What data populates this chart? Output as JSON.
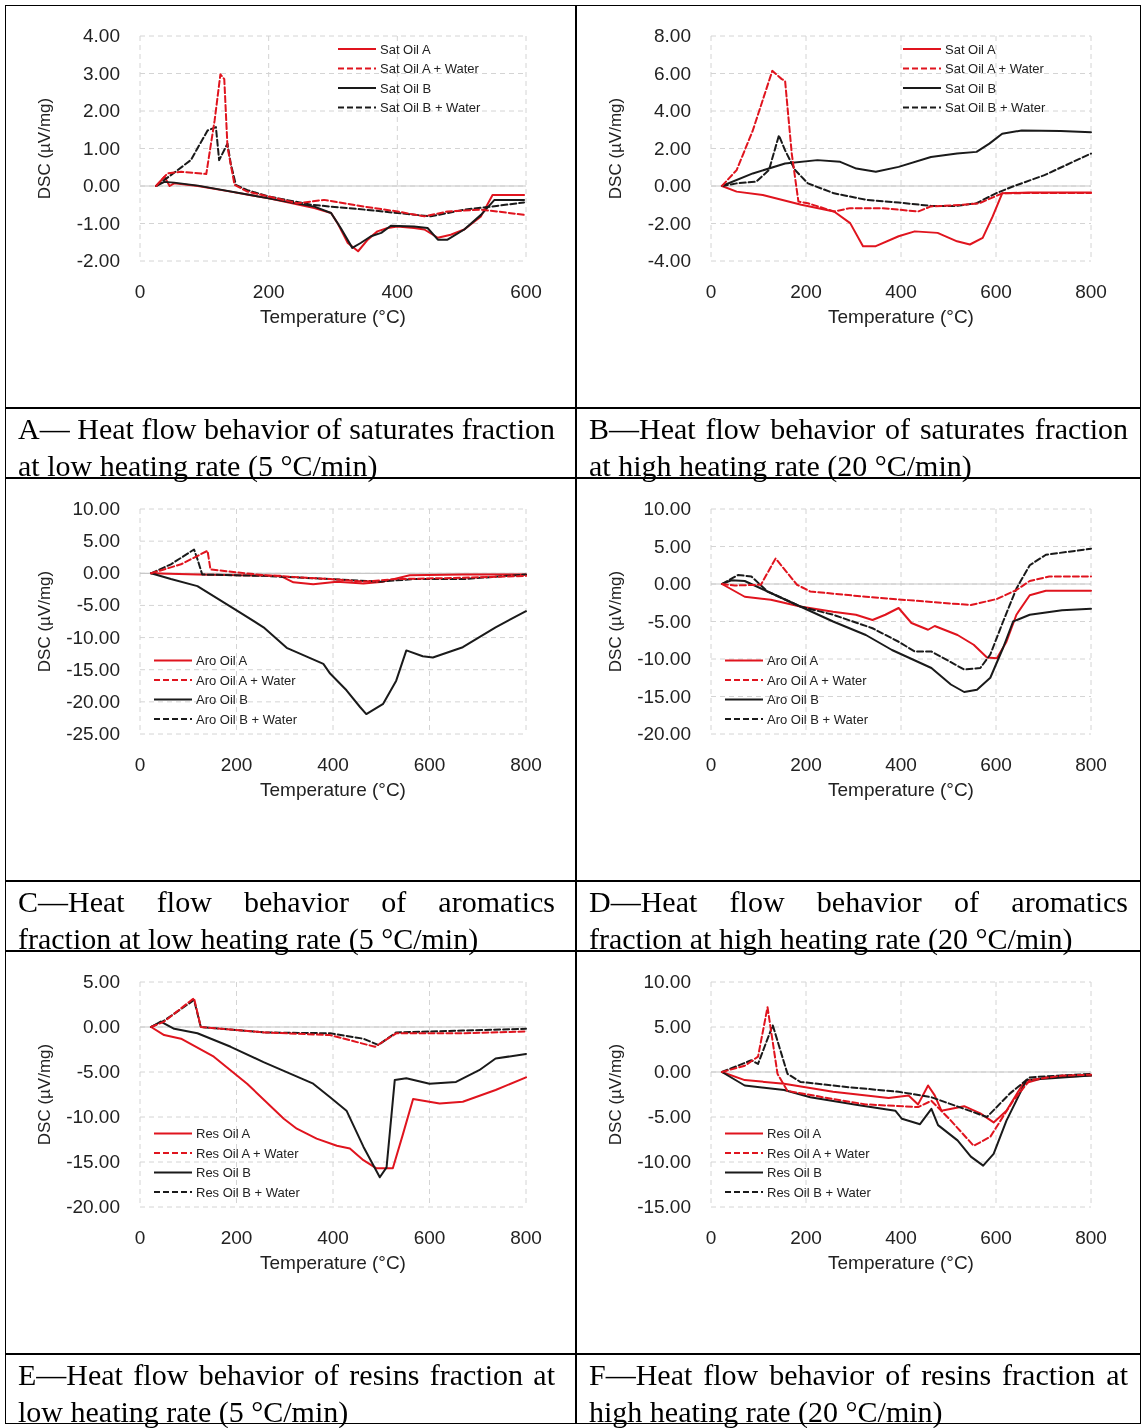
{
  "chart_data": [
    {
      "type": "line",
      "title": "A— Heat flow behavior of saturates fraction at low heating rate (5 °C/min)",
      "xlabel": "Temperature (°C)",
      "ylabel": "DSC (µV/mg)",
      "xlim": [
        0,
        600
      ],
      "xticks": [
        0,
        200,
        400,
        600
      ],
      "ylim": [
        -2,
        4
      ],
      "yticks": [
        {
          "value": -2,
          "label": "-2.00"
        },
        {
          "value": -1,
          "label": "-1.00"
        },
        {
          "value": 0,
          "label": "0.00"
        },
        {
          "value": 1,
          "label": "1.00"
        },
        {
          "value": 2,
          "label": "2.00"
        },
        {
          "value": 3,
          "label": "3.00"
        },
        {
          "value": 4,
          "label": "4.00"
        }
      ],
      "grid": true,
      "legend": "top right",
      "series": [
        {
          "name": "Sat Oil A",
          "color": "#e0141e",
          "line_style": "solid",
          "x": [
            25,
            38,
            46,
            53,
            90,
            141,
            200,
            271,
            297,
            307,
            323,
            339,
            354,
            369,
            385,
            400,
            426,
            442,
            463,
            483,
            504,
            530,
            548,
            597
          ],
          "values": [
            0,
            0.25,
            0,
            0.07,
            0,
            -0.15,
            -0.33,
            -0.59,
            -0.72,
            -0.99,
            -1.52,
            -1.74,
            -1.43,
            -1.21,
            -1.12,
            -1.08,
            -1.12,
            -1.16,
            -1.38,
            -1.3,
            -1.16,
            -0.81,
            -0.24,
            -0.24
          ]
        },
        {
          "name": "Sat Oil A + Water",
          "color": "#e0141e",
          "line_style": "dashed",
          "x": [
            25,
            43,
            64,
            103,
            116,
            125,
            131,
            136,
            147,
            167,
            200,
            245,
            286,
            349,
            400,
            442,
            478,
            530,
            556,
            597
          ],
          "values": [
            0,
            0.34,
            0.38,
            0.32,
            1.75,
            2.98,
            2.85,
            1.04,
            0.03,
            -0.15,
            -0.28,
            -0.46,
            -0.37,
            -0.55,
            -0.68,
            -0.81,
            -0.68,
            -0.63,
            -0.68,
            -0.77
          ]
        },
        {
          "name": "Sat Oil B",
          "color": "#1a1a1a",
          "line_style": "solid",
          "x": [
            25,
            38,
            53,
            90,
            200,
            271,
            297,
            312,
            330,
            343,
            359,
            375,
            390,
            426,
            447,
            463,
            478,
            504,
            530,
            551,
            597
          ],
          "values": [
            0,
            0.11,
            0.09,
            0.01,
            -0.33,
            -0.55,
            -0.72,
            -1.12,
            -1.65,
            -1.52,
            -1.34,
            -1.25,
            -1.06,
            -1.08,
            -1.12,
            -1.43,
            -1.43,
            -1.16,
            -0.77,
            -0.37,
            -0.37
          ]
        },
        {
          "name": "Sat Oil B + Water",
          "color": "#1a1a1a",
          "line_style": "dashed",
          "x": [
            25,
            48,
            79,
            105,
            118,
            123,
            136,
            141,
            149,
            167,
            200,
            266,
            297,
            349,
            400,
            452,
            504,
            546,
            597
          ],
          "values": [
            0,
            0.29,
            0.69,
            1.48,
            1.57,
            0.69,
            1.13,
            0.6,
            0.03,
            -0.11,
            -0.28,
            -0.5,
            -0.55,
            -0.63,
            -0.72,
            -0.81,
            -0.63,
            -0.55,
            -0.44
          ]
        }
      ]
    },
    {
      "type": "line",
      "title": "B—Heat flow behavior of saturates fraction at high heating rate (20 °C/min)",
      "xlabel": "Temperature (°C)",
      "ylabel": "DSC (µV/mg)",
      "xlim": [
        0,
        800
      ],
      "xticks": [
        0,
        200,
        400,
        600,
        800
      ],
      "ylim": [
        -4,
        8
      ],
      "yticks": [
        {
          "value": -4,
          "label": "-4.00"
        },
        {
          "value": -2,
          "label": "-2.00"
        },
        {
          "value": 0,
          "label": "0.00"
        },
        {
          "value": 2,
          "label": "2.00"
        },
        {
          "value": 4,
          "label": "4.00"
        },
        {
          "value": 6,
          "label": "6.00"
        },
        {
          "value": 8,
          "label": "8.00"
        }
      ],
      "grid": true,
      "legend": "top right",
      "series": [
        {
          "name": "Sat Oil A",
          "color": "#e0141e",
          "line_style": "solid",
          "x": [
            23,
            54,
            109,
            190,
            259,
            293,
            320,
            347,
            395,
            429,
            477,
            518,
            545,
            572,
            593,
            613,
            668,
            800
          ],
          "values": [
            0,
            -0.3,
            -0.48,
            -1.0,
            -1.36,
            -1.98,
            -3.21,
            -3.21,
            -2.68,
            -2.42,
            -2.5,
            -2.95,
            -3.12,
            -2.77,
            -1.62,
            -0.39,
            -0.35,
            -0.35
          ]
        },
        {
          "name": "Sat Oil A + Water",
          "color": "#e0141e",
          "line_style": "dashed",
          "x": [
            23,
            54,
            88,
            129,
            149,
            156,
            170,
            184,
            204,
            259,
            293,
            361,
            436,
            463,
            531,
            565,
            613,
            700,
            800
          ],
          "values": [
            0,
            0.85,
            2.96,
            6.14,
            5.7,
            5.6,
            1.73,
            -0.83,
            -0.92,
            -1.36,
            -1.18,
            -1.18,
            -1.36,
            -1.09,
            -1.0,
            -0.92,
            -0.39,
            -0.37,
            -0.37
          ]
        },
        {
          "name": "Sat Oil B",
          "color": "#1a1a1a",
          "line_style": "solid",
          "x": [
            23,
            88,
            156,
            224,
            272,
            306,
            347,
            395,
            463,
            518,
            559,
            586,
            613,
            654,
            736,
            800
          ],
          "values": [
            0,
            0.67,
            1.2,
            1.38,
            1.29,
            0.93,
            0.76,
            1.02,
            1.55,
            1.73,
            1.82,
            2.26,
            2.79,
            2.96,
            2.93,
            2.87
          ]
        },
        {
          "name": "Sat Oil B + Water",
          "color": "#1a1a1a",
          "line_style": "dashed",
          "x": [
            23,
            54,
            95,
            122,
            143,
            156,
            177,
            204,
            259,
            327,
            395,
            463,
            518,
            559,
            600,
            634,
            702,
            800
          ],
          "values": [
            0,
            0.14,
            0.23,
            0.85,
            2.7,
            1.9,
            0.85,
            0.14,
            -0.39,
            -0.74,
            -0.88,
            -1.06,
            -1.06,
            -0.92,
            -0.39,
            -0.04,
            0.58,
            1.73
          ]
        }
      ]
    },
    {
      "type": "line",
      "title": "C—Heat flow behavior of aromatics fraction at low heating rate (5 °C/min)",
      "xlabel": "Temperature (°C)",
      "ylabel": "DSC (µV/mg)",
      "xlim": [
        0,
        800
      ],
      "xticks": [
        0,
        200,
        400,
        600,
        800
      ],
      "ylim": [
        -25,
        10
      ],
      "yticks": [
        {
          "value": -25,
          "label": "-25.00"
        },
        {
          "value": -20,
          "label": "-20.00"
        },
        {
          "value": -15,
          "label": "-15.00"
        },
        {
          "value": -10,
          "label": "-10.00"
        },
        {
          "value": -5,
          "label": "-5.00"
        },
        {
          "value": 0,
          "label": "0.00"
        },
        {
          "value": 5,
          "label": "5.00"
        },
        {
          "value": 10,
          "label": "10.00"
        }
      ],
      "grid": true,
      "legend": "bottom left",
      "series": [
        {
          "name": "Aro Oil A",
          "color": "#e0141e",
          "line_style": "solid",
          "x": [
            23,
            119,
            291,
            318,
            359,
            408,
            463,
            504,
            559,
            669,
            800
          ],
          "values": [
            0,
            -0.2,
            -0.4,
            -1.4,
            -1.7,
            -1.3,
            -1.6,
            -1.3,
            -0.3,
            -0.2,
            -0.2
          ]
        },
        {
          "name": "Aro Oil A + Water",
          "color": "#e0141e",
          "line_style": "dashed",
          "x": [
            23,
            85,
            140,
            146,
            256,
            394,
            463,
            531,
            669,
            800
          ],
          "values": [
            0,
            1.4,
            3.5,
            0.6,
            -0.3,
            -0.9,
            -1.3,
            -0.9,
            -0.7,
            -0.4
          ]
        },
        {
          "name": "Aro Oil B",
          "color": "#1a1a1a",
          "line_style": "solid",
          "x": [
            23,
            64,
            119,
            201,
            256,
            304,
            380,
            394,
            428,
            456,
            469,
            504,
            531,
            552,
            586,
            607,
            669,
            737,
            800
          ],
          "values": [
            0,
            -0.9,
            -2.0,
            -5.8,
            -8.4,
            -11.6,
            -14.1,
            -15.6,
            -18.2,
            -20.8,
            -21.9,
            -20.3,
            -16.7,
            -12.0,
            -12.9,
            -13.1,
            -11.5,
            -8.4,
            -5.9
          ]
        },
        {
          "name": "Aro Oil B + Water",
          "color": "#1a1a1a",
          "line_style": "dashed",
          "x": [
            23,
            64,
            112,
            119,
            129,
            256,
            394,
            497,
            566,
            669,
            800
          ],
          "values": [
            0,
            1.4,
            3.7,
            2.2,
            -0.2,
            -0.4,
            -0.9,
            -1.3,
            -0.9,
            -0.9,
            -0.2
          ]
        }
      ]
    },
    {
      "type": "line",
      "title": "D—Heat flow behavior of aromatics fraction at high heating rate (20 °C/min)",
      "xlabel": "Temperature (°C)",
      "ylabel": "DSC (µV/mg)",
      "xlim": [
        0,
        800
      ],
      "xticks": [
        0,
        200,
        400,
        600,
        800
      ],
      "ylim": [
        -20,
        10
      ],
      "yticks": [
        {
          "value": -20,
          "label": "-20.00"
        },
        {
          "value": -15,
          "label": "-15.00"
        },
        {
          "value": -10,
          "label": "-10.00"
        },
        {
          "value": -5,
          "label": "-5.00"
        },
        {
          "value": 0,
          "label": "0.00"
        },
        {
          "value": 5,
          "label": "5.00"
        },
        {
          "value": 10,
          "label": "10.00"
        }
      ],
      "grid": true,
      "legend": "bottom left",
      "series": [
        {
          "name": "Aro Oil A",
          "color": "#e0141e",
          "line_style": "solid",
          "x": [
            23,
            71,
            126,
            188,
            257,
            305,
            340,
            367,
            395,
            422,
            457,
            471,
            519,
            553,
            581,
            602,
            622,
            643,
            671,
            705,
            800
          ],
          "values": [
            0,
            -1.7,
            -2.1,
            -3.0,
            -3.7,
            -4.1,
            -4.8,
            -4.1,
            -3.2,
            -5.2,
            -6.1,
            -5.6,
            -6.8,
            -8.1,
            -9.8,
            -9.9,
            -7.7,
            -4.1,
            -1.5,
            -0.9,
            -0.9
          ]
        },
        {
          "name": "Aro Oil A + Water",
          "color": "#e0141e",
          "line_style": "dashed",
          "x": [
            23,
            50,
            105,
            136,
            181,
            209,
            326,
            464,
            547,
            602,
            643,
            671,
            712,
            800
          ],
          "values": [
            0,
            -0.2,
            -0.1,
            3.4,
            -0.1,
            -1.0,
            -1.7,
            -2.4,
            -2.8,
            -2.0,
            -0.8,
            0.4,
            1.0,
            1.0
          ]
        },
        {
          "name": "Aro Oil B",
          "color": "#1a1a1a",
          "line_style": "solid",
          "x": [
            23,
            43,
            71,
            119,
            188,
            257,
            326,
            381,
            464,
            505,
            533,
            560,
            588,
            615,
            636,
            671,
            739,
            800
          ],
          "values": [
            0,
            0.5,
            0.4,
            -1.0,
            -3.0,
            -5.0,
            -6.8,
            -8.8,
            -11.2,
            -13.4,
            -14.4,
            -14.1,
            -12.5,
            -8.5,
            -5.0,
            -4.1,
            -3.5,
            -3.3
          ]
        },
        {
          "name": "Aro Oil B + Water",
          "color": "#1a1a1a",
          "line_style": "dashed",
          "x": [
            23,
            57,
            85,
            119,
            188,
            257,
            340,
            395,
            429,
            464,
            533,
            567,
            588,
            615,
            643,
            671,
            705,
            800
          ],
          "values": [
            0,
            1.2,
            1.0,
            -1.0,
            -3.0,
            -4.1,
            -5.9,
            -7.7,
            -9.0,
            -9.0,
            -11.4,
            -11.2,
            -9.4,
            -5.0,
            -0.6,
            2.5,
            3.9,
            4.7
          ]
        }
      ]
    },
    {
      "type": "line",
      "title": "E—Heat flow behavior of resins fraction at low heating rate (5 °C/min)",
      "xlabel": "Temperature (°C)",
      "ylabel": "DSC (µV/mg)",
      "xlim": [
        0,
        800
      ],
      "xticks": [
        0,
        200,
        400,
        600,
        800
      ],
      "ylim": [
        -20,
        5
      ],
      "yticks": [
        {
          "value": -20,
          "label": "-20.00"
        },
        {
          "value": -15,
          "label": "-15.00"
        },
        {
          "value": -10,
          "label": "-10.00"
        },
        {
          "value": -5,
          "label": "-5.00"
        },
        {
          "value": 0,
          "label": "0.00"
        },
        {
          "value": 5,
          "label": "5.00"
        }
      ],
      "grid": true,
      "legend": "bottom left",
      "series": [
        {
          "name": "Res Oil A",
          "color": "#e0141e",
          "line_style": "solid",
          "x": [
            23,
            50,
            85,
            153,
            222,
            298,
            325,
            366,
            408,
            435,
            463,
            490,
            524,
            545,
            566,
            621,
            669,
            737,
            800
          ],
          "values": [
            0,
            -0.9,
            -1.3,
            -3.3,
            -6.3,
            -10.2,
            -11.3,
            -12.4,
            -13.2,
            -13.5,
            -14.8,
            -15.7,
            -15.7,
            -11.9,
            -8.0,
            -8.5,
            -8.3,
            -7.0,
            -5.6
          ]
        },
        {
          "name": "Res Oil A + Water",
          "color": "#e0141e",
          "line_style": "dashed",
          "x": [
            23,
            50,
            112,
            126,
            256,
            394,
            487,
            531,
            669,
            800
          ],
          "values": [
            0,
            0.6,
            3.2,
            0,
            -0.6,
            -0.9,
            -2.2,
            -0.7,
            -0.7,
            -0.5
          ]
        },
        {
          "name": "Res Oil B",
          "color": "#1a1a1a",
          "line_style": "solid",
          "x": [
            23,
            43,
            71,
            119,
            188,
            256,
            359,
            394,
            428,
            463,
            497,
            511,
            528,
            552,
            600,
            655,
            703,
            737,
            800
          ],
          "values": [
            0,
            0.6,
            -0.2,
            -0.7,
            -2.2,
            -3.9,
            -6.3,
            -7.8,
            -9.3,
            -13.3,
            -16.7,
            -15.6,
            -5.9,
            -5.7,
            -6.3,
            -6.1,
            -4.8,
            -3.5,
            -3.0
          ]
        },
        {
          "name": "Res Oil B + Water",
          "color": "#1a1a1a",
          "line_style": "dashed",
          "x": [
            23,
            50,
            112,
            126,
            256,
            394,
            463,
            494,
            531,
            669,
            800
          ],
          "values": [
            0,
            0.7,
            3.0,
            0,
            -0.6,
            -0.7,
            -1.3,
            -2.0,
            -0.6,
            -0.4,
            -0.2
          ]
        }
      ]
    },
    {
      "type": "line",
      "title": "F—Heat flow behavior of resins fraction at high heating rate (20 °C/min)",
      "xlabel": "Temperature (°C)",
      "ylabel": "DSC (µV/mg)",
      "xlim": [
        0,
        800
      ],
      "xticks": [
        0,
        200,
        400,
        600,
        800
      ],
      "ylim": [
        -15,
        10
      ],
      "yticks": [
        {
          "value": -15,
          "label": "-15.00"
        },
        {
          "value": -10,
          "label": "-10.00"
        },
        {
          "value": -5,
          "label": "-5.00"
        },
        {
          "value": 0,
          "label": "0.00"
        },
        {
          "value": 5,
          "label": "5.00"
        },
        {
          "value": 10,
          "label": "10.00"
        }
      ],
      "grid": true,
      "legend": "bottom left",
      "series": [
        {
          "name": "Res Oil A",
          "color": "#e0141e",
          "line_style": "solid",
          "x": [
            23,
            71,
            154,
            257,
            374,
            416,
            436,
            457,
            471,
            485,
            533,
            567,
            595,
            622,
            657,
            705,
            800
          ],
          "values": [
            0,
            -0.9,
            -1.3,
            -2.2,
            -2.9,
            -2.6,
            -3.6,
            -1.5,
            -2.6,
            -4.3,
            -3.8,
            -4.6,
            -5.6,
            -4.3,
            -1.3,
            -0.6,
            -0.4
          ]
        },
        {
          "name": "Res Oil A + Water",
          "color": "#e0141e",
          "line_style": "dashed",
          "x": [
            23,
            71,
            99,
            119,
            140,
            161,
            257,
            326,
            436,
            464,
            505,
            553,
            588,
            636,
            671,
            740,
            800
          ],
          "values": [
            0,
            0.7,
            1.7,
            7.2,
            -0.2,
            -2.1,
            -3.0,
            -3.6,
            -3.9,
            -3.2,
            -5.4,
            -8.2,
            -7.2,
            -3.2,
            -0.9,
            -0.4,
            -0.3
          ]
        },
        {
          "name": "Res Oil B",
          "color": "#1a1a1a",
          "line_style": "solid",
          "x": [
            23,
            71,
            154,
            209,
            312,
            388,
            402,
            440,
            464,
            478,
            519,
            547,
            573,
            595,
            622,
            664,
            800
          ],
          "values": [
            0,
            -1.5,
            -2.0,
            -2.8,
            -3.7,
            -4.3,
            -5.2,
            -5.8,
            -4.1,
            -5.9,
            -7.6,
            -9.4,
            -10.4,
            -9.1,
            -5.4,
            -0.9,
            -0.4
          ]
        },
        {
          "name": "Res Oil B + Water",
          "color": "#1a1a1a",
          "line_style": "dashed",
          "x": [
            23,
            85,
            99,
            130,
            161,
            188,
            292,
            395,
            464,
            533,
            581,
            629,
            671,
            800
          ],
          "values": [
            0,
            1.3,
            0.9,
            5.2,
            -0.2,
            -1.1,
            -1.7,
            -2.2,
            -2.8,
            -4.1,
            -5.0,
            -2.4,
            -0.6,
            -0.2
          ]
        }
      ]
    }
  ]
}
